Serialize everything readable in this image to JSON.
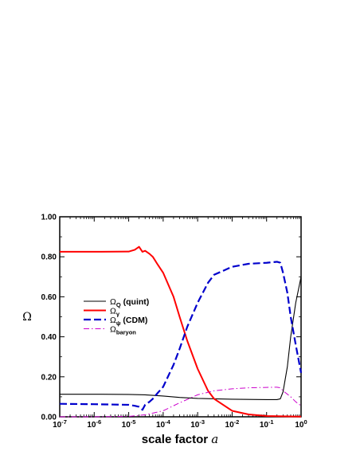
{
  "chart_data": {
    "type": "line",
    "title": "",
    "xlabel": "scale factor a",
    "ylabel": "Ω",
    "xscale": "log",
    "xlim": [
      1e-07,
      1
    ],
    "ylim": [
      0,
      1
    ],
    "x_ticks": [
      {
        "base": "10",
        "exp": "-7"
      },
      {
        "base": "10",
        "exp": "-6"
      },
      {
        "base": "10",
        "exp": "-5"
      },
      {
        "base": "10",
        "exp": "-4"
      },
      {
        "base": "10",
        "exp": "-3"
      },
      {
        "base": "10",
        "exp": "-2"
      },
      {
        "base": "10",
        "exp": "-1"
      },
      {
        "base": "10",
        "exp": "0"
      }
    ],
    "y_ticks": [
      "0.00",
      "0.20",
      "0.40",
      "0.60",
      "0.80",
      "1.00"
    ],
    "legend_position": "center-left",
    "series": [
      {
        "name": "quint",
        "legend_symbol": "Ω",
        "legend_sub": "Q",
        "legend_suffix": " (quint)",
        "color": "#000000",
        "style": "solid",
        "x": [
          1e-07,
          1e-06,
          1e-05,
          3e-05,
          0.0001,
          0.0003,
          0.001,
          0.01,
          0.1,
          0.2,
          0.25,
          0.3,
          0.4,
          0.5,
          0.7,
          1.0
        ],
        "y": [
          0.113,
          0.113,
          0.112,
          0.11,
          0.104,
          0.097,
          0.092,
          0.088,
          0.086,
          0.086,
          0.09,
          0.125,
          0.25,
          0.4,
          0.57,
          0.7
        ]
      },
      {
        "name": "gamma",
        "legend_symbol": "Ω",
        "legend_sub": "γ",
        "legend_suffix": "",
        "color": "#ff0000",
        "style": "solid",
        "x": [
          1e-07,
          1e-06,
          1e-05,
          1.5e-05,
          2e-05,
          2.5e-05,
          3e-05,
          4e-05,
          5e-05,
          7e-05,
          0.0001,
          0.0002,
          0.0003,
          0.0005,
          0.001,
          0.002,
          0.003,
          0.01,
          0.03,
          0.1,
          1.0
        ],
        "y": [
          0.825,
          0.825,
          0.826,
          0.835,
          0.85,
          0.825,
          0.83,
          0.815,
          0.8,
          0.76,
          0.72,
          0.6,
          0.5,
          0.38,
          0.24,
          0.13,
          0.09,
          0.03,
          0.012,
          0.004,
          0.001
        ]
      },
      {
        "name": "CDM",
        "legend_symbol": "Ω",
        "legend_sub": "ψ",
        "legend_suffix": " (CDM)",
        "color": "#0000cc",
        "style": "dashed",
        "x": [
          1e-07,
          1e-06,
          1e-05,
          1.5e-05,
          2e-05,
          2.5e-05,
          3e-05,
          4e-05,
          5e-05,
          7e-05,
          0.0001,
          0.0002,
          0.0003,
          0.0005,
          0.001,
          0.002,
          0.003,
          0.01,
          0.03,
          0.1,
          0.2,
          0.25,
          0.3,
          0.4,
          0.5,
          0.7,
          1.0
        ],
        "y": [
          0.065,
          0.063,
          0.06,
          0.055,
          0.05,
          0.035,
          0.06,
          0.075,
          0.09,
          0.12,
          0.15,
          0.26,
          0.34,
          0.45,
          0.57,
          0.67,
          0.71,
          0.75,
          0.765,
          0.77,
          0.775,
          0.77,
          0.72,
          0.62,
          0.5,
          0.36,
          0.22
        ]
      },
      {
        "name": "baryon",
        "legend_symbol": "Ω",
        "legend_sub": "baryon",
        "legend_suffix": "",
        "color": "#cc00cc",
        "style": "dashdot",
        "x": [
          1e-07,
          1e-06,
          1e-05,
          3e-05,
          0.0001,
          0.0003,
          0.001,
          0.003,
          0.01,
          0.03,
          0.1,
          0.2,
          0.25,
          0.3,
          0.5,
          0.7,
          1.0
        ],
        "y": [
          0.0,
          0.0,
          0.002,
          0.01,
          0.03,
          0.07,
          0.11,
          0.13,
          0.14,
          0.145,
          0.147,
          0.148,
          0.145,
          0.13,
          0.1,
          0.075,
          0.055
        ]
      }
    ]
  }
}
